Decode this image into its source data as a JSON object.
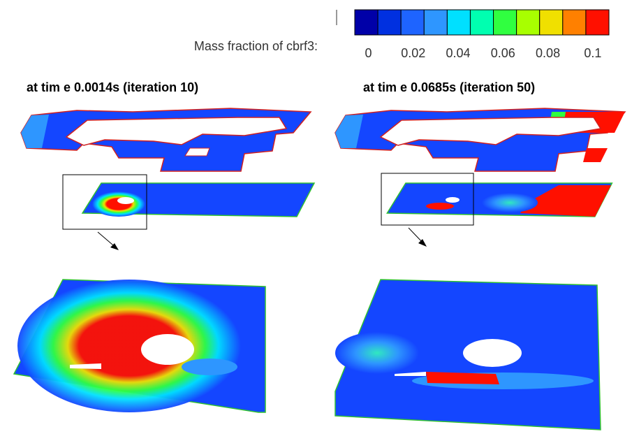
{
  "legend": {
    "title": "Mass fraction of cbrf3:",
    "colors": [
      "#0000a8",
      "#0030e0",
      "#1e64ff",
      "#2e96ff",
      "#00e0ff",
      "#00ffb0",
      "#30ff40",
      "#a8ff00",
      "#f0e000",
      "#ff8000",
      "#ff1000"
    ],
    "ticks": [
      "0",
      "0.02",
      "0.04",
      "0.06",
      "0.08",
      "0.1"
    ]
  },
  "panels": [
    {
      "title": "at tim e 0.0014s (iteration 10)"
    },
    {
      "title": "at tim e 0.0685s (iteration 50)"
    }
  ]
}
